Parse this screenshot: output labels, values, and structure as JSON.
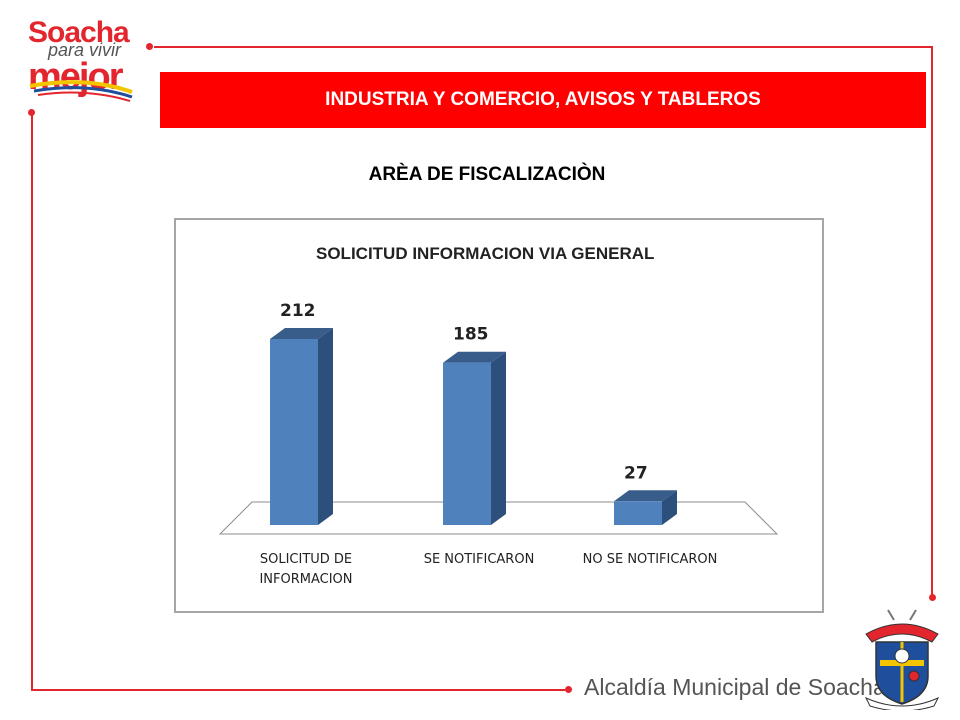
{
  "logo": {
    "line1": "Soacha",
    "line2": "para vivir",
    "line3": "mejor"
  },
  "banner": {
    "title": "INDUSTRIA Y COMERCIO, AVISOS Y TABLEROS"
  },
  "subtitle": "ARÈA DE FISCALIZACIÒN",
  "footer": {
    "text": "Alcaldía Municipal de Soacha"
  },
  "colors": {
    "accent": "#e3262d",
    "banner": "#ff0000",
    "bar": "#4f81bd"
  },
  "chart_data": {
    "type": "bar",
    "title": "SOLICITUD INFORMACION VIA GENERAL",
    "categories": [
      [
        "SOLICITUD DE",
        "INFORMACION"
      ],
      [
        "SE NOTIFICARON"
      ],
      [
        "NO SE NOTIFICARON"
      ]
    ],
    "values": [
      212,
      185,
      27
    ],
    "ylim": [
      0,
      212
    ],
    "grid": false,
    "legend": "none"
  }
}
